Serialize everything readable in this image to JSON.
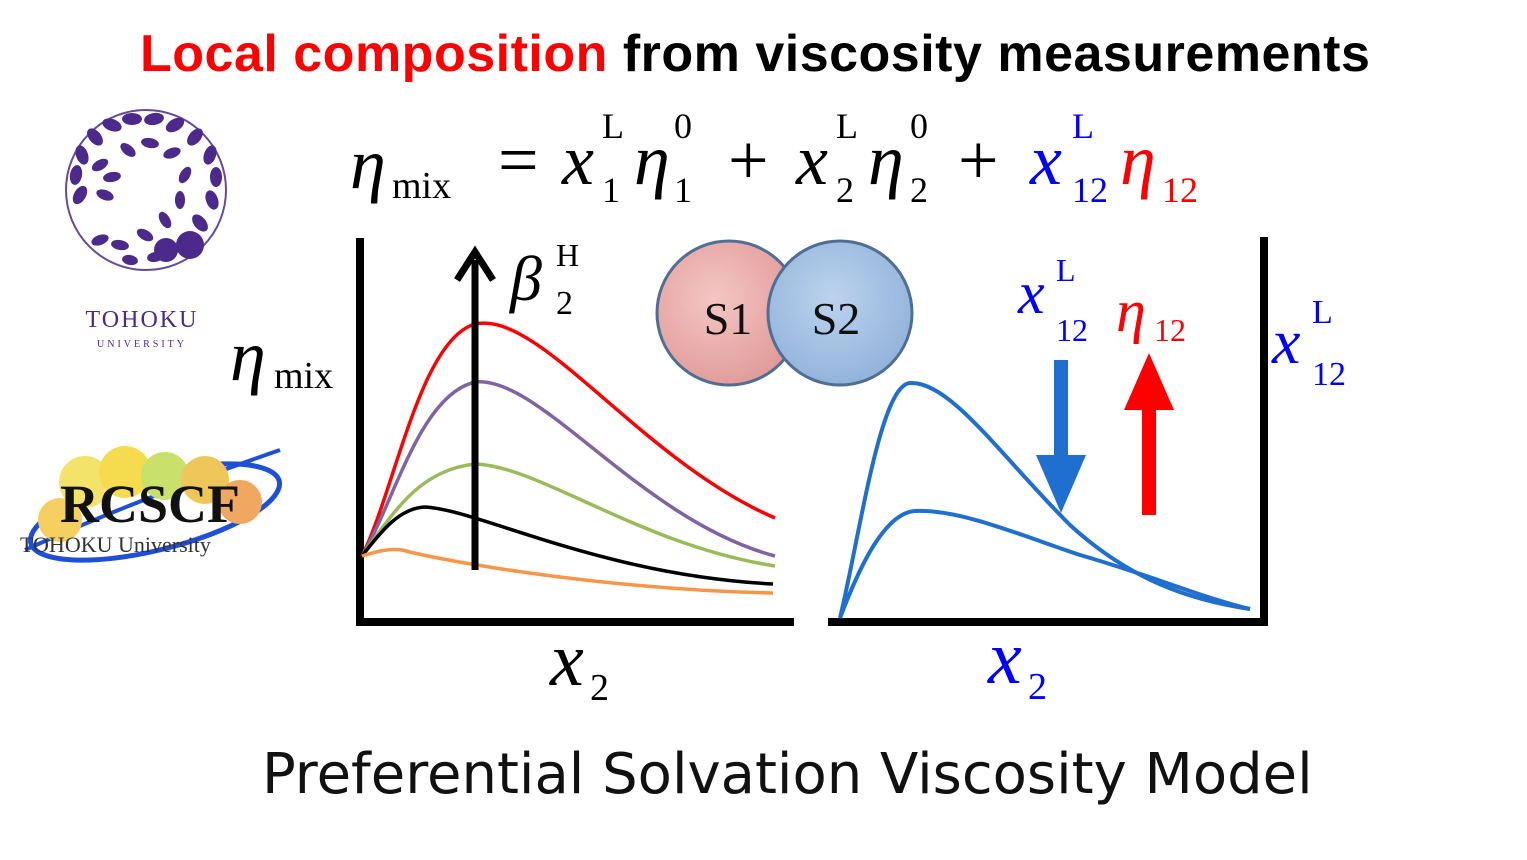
{
  "title": {
    "highlight": "Local composition",
    "rest": " from viscosity measurements",
    "highlight_color": "#ff0000",
    "rest_color": "#000000"
  },
  "equation": {
    "lhs_symbol": "η",
    "lhs_sub": "mix",
    "equals": "=",
    "term1": {
      "x": "x",
      "x_sup": "L",
      "x_sub": "1",
      "eta": "η",
      "eta_sup": "0",
      "eta_sub": "1"
    },
    "plus1": "+",
    "term2": {
      "x": "x",
      "x_sup": "L",
      "x_sub": "2",
      "eta": "η",
      "eta_sup": "0",
      "eta_sub": "2"
    },
    "plus2": "+",
    "term3": {
      "x": "x",
      "x_sup": "L",
      "x_sub": "12",
      "eta": "η",
      "eta_sub": "12"
    },
    "colors": {
      "black": "#000000",
      "blue": "#0000ff",
      "red": "#ff0000"
    }
  },
  "logos": {
    "tohoku": {
      "name": "TOHOKU",
      "sub": "UNIVERSITY",
      "color": "#4b2a8c"
    },
    "rcscf": {
      "name": "RCSCF",
      "sub": "TOHOKU University"
    }
  },
  "left_plot": {
    "y_symbol": "η",
    "y_sub": "mix",
    "x_symbol": "x",
    "x_sub": "2",
    "arrow_symbol": "β",
    "arrow_sup": "H",
    "arrow_sub": "2",
    "curve_colors": [
      "#ff0000",
      "#8064a2",
      "#9bbb59",
      "#000000",
      "#f79646"
    ]
  },
  "molecules": {
    "s1": "S1",
    "s2": "S2",
    "s1_color": "#e6a3a2",
    "s2_color": "#a8c4e4"
  },
  "right_plot": {
    "x_symbol": "x",
    "x_sub": "2",
    "axis_symbol": "x",
    "axis_sup": "L",
    "axis_sub": "12",
    "down_label": {
      "x": "x",
      "sup": "L",
      "sub": "12"
    },
    "up_label": {
      "eta": "η",
      "sub": "12"
    },
    "curve_color": "#1f6fd1",
    "down_arrow_color": "#1f6fd1",
    "up_arrow_color": "#ff0000"
  },
  "caption": "Preferential Solvation Viscosity Model"
}
